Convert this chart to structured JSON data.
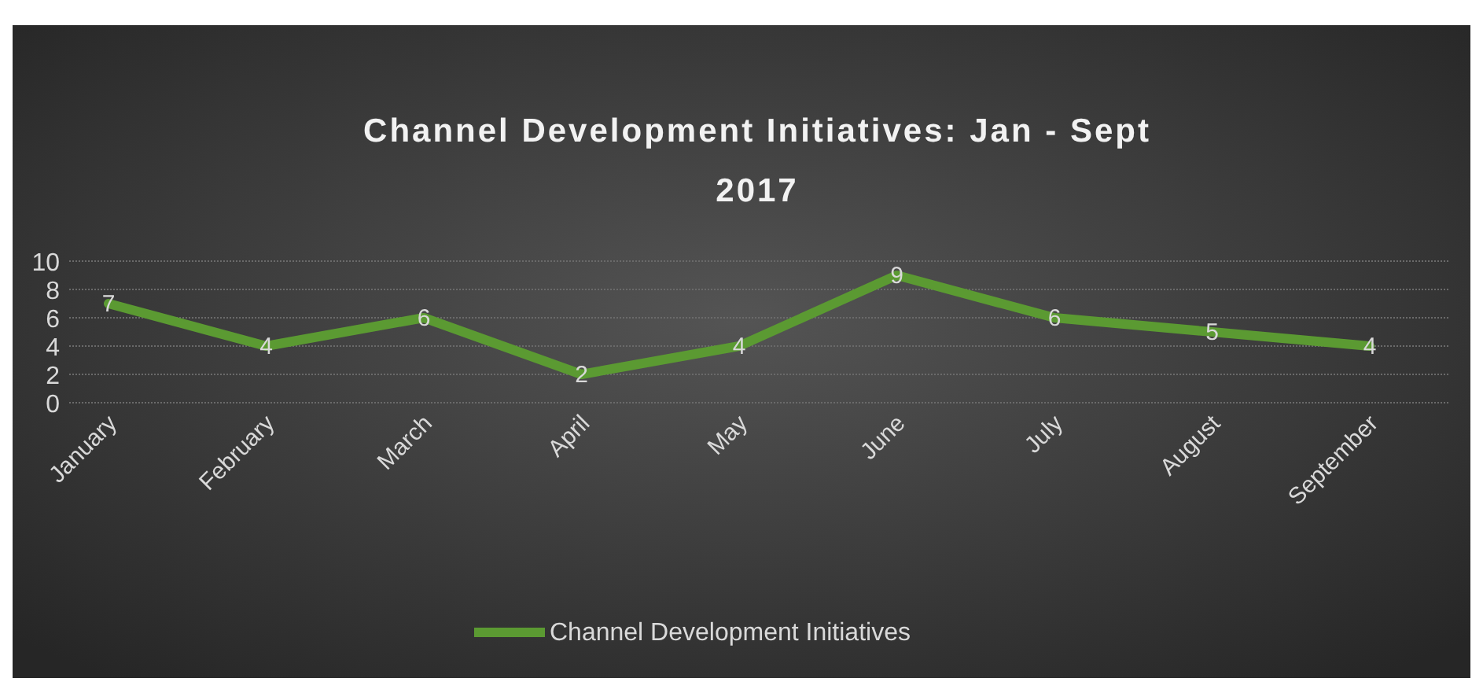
{
  "chart_data": {
    "type": "line",
    "title": "Channel Development Initiatives: Jan - Sept 2017",
    "categories": [
      "January",
      "February",
      "March",
      "April",
      "May",
      "June",
      "July",
      "August",
      "September"
    ],
    "series": [
      {
        "name": "Channel Development Initiatives",
        "color": "#5b9a32",
        "values": [
          7,
          4,
          6,
          2,
          4,
          9,
          6,
          5,
          4
        ]
      }
    ],
    "ylim": [
      0,
      10
    ],
    "yticks": [
      0,
      2,
      4,
      6,
      8,
      10
    ],
    "grid": "y",
    "legend": "bottom",
    "data_labels": true,
    "marker": "none",
    "line_style": "solid"
  }
}
